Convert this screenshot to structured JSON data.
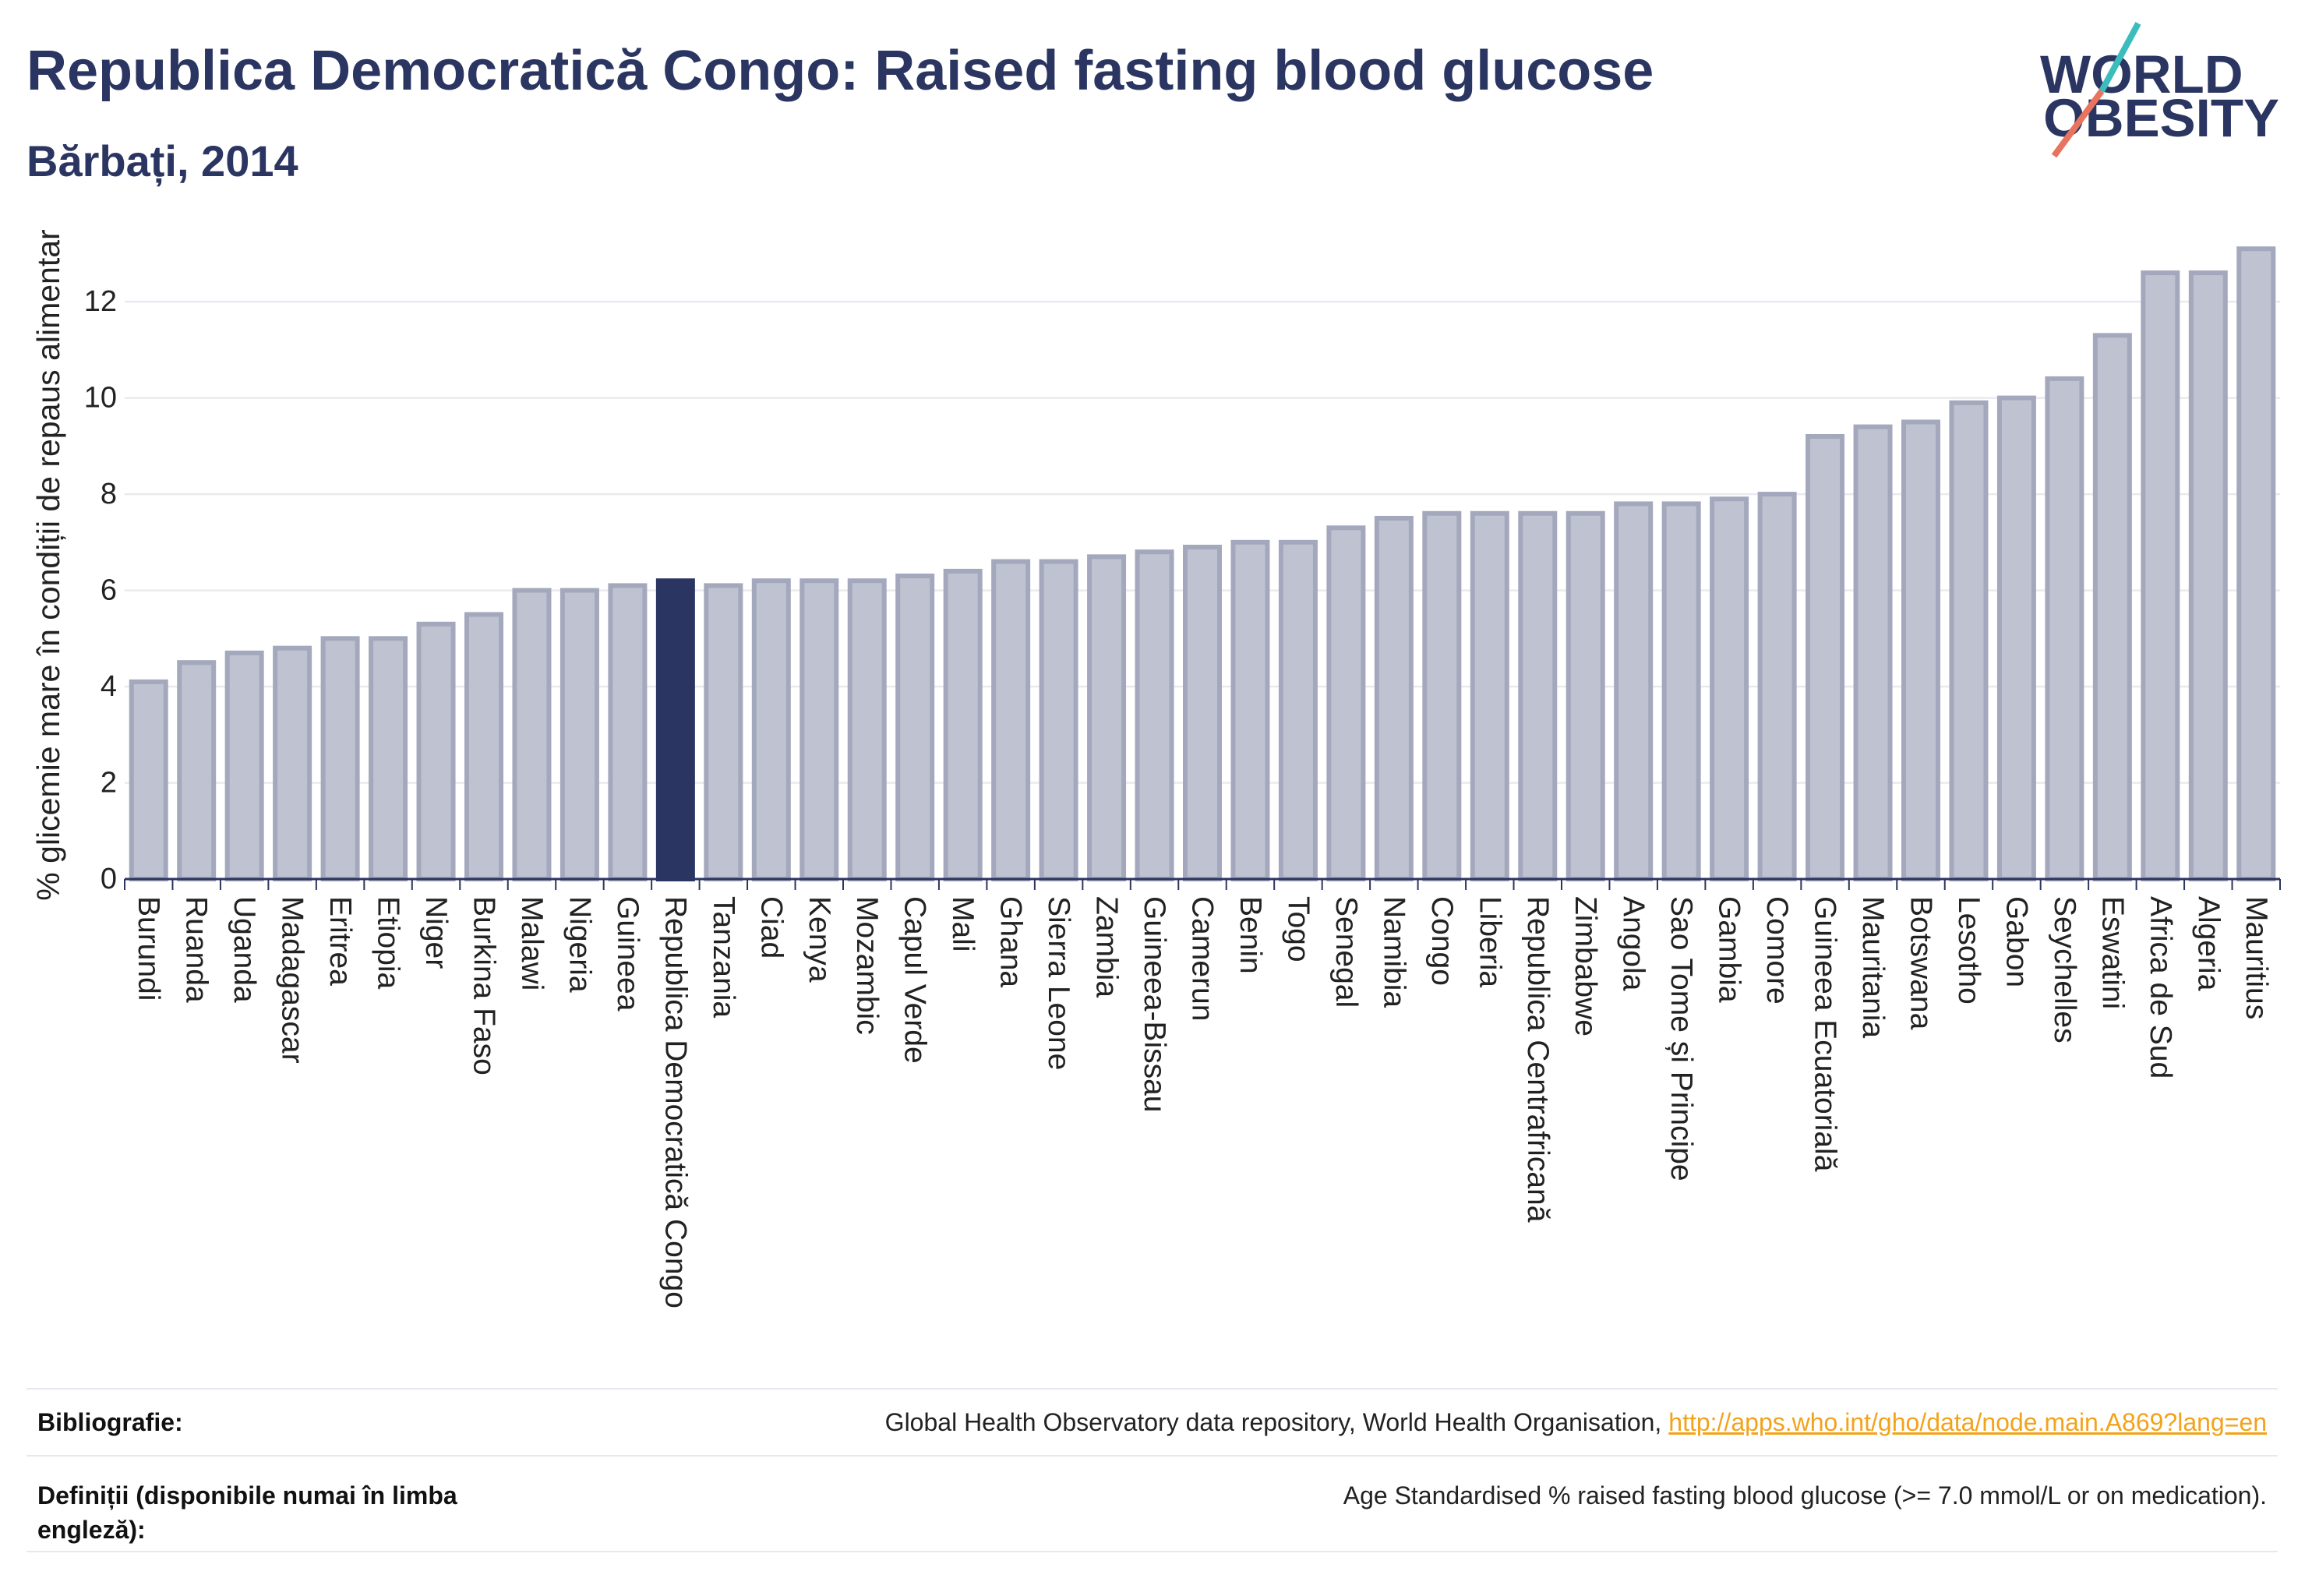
{
  "header": {
    "logo": {
      "line1": "WORLD",
      "line2": "OBESITY",
      "colors": {
        "text": "#2b3561",
        "slash_top": "#3bbcbd",
        "slash_bottom": "#e8735f"
      }
    }
  },
  "theme": {
    "title": "#2b3561",
    "link": "#f2a31b"
  },
  "chart_data": {
    "type": "bar",
    "title": "Republica Democratică Congo: Raised fasting blood glucose",
    "subtitle": "Bărbați, 2014",
    "xlabel": "",
    "ylabel": "% glicemie mare în condiții de repaus alimentar",
    "ylim": [
      0,
      13.8
    ],
    "yticks": [
      0,
      2,
      4,
      6,
      8,
      10,
      12
    ],
    "grid": true,
    "highlight_index": 11,
    "colors": {
      "bar": "#bfc2d0",
      "bar_border": "#a3a8bc",
      "highlight": "#2b3561",
      "grid": "#e9eaef",
      "axis": "#2b3561",
      "text": "#222222"
    },
    "categories": [
      "Burundi",
      "Ruanda",
      "Uganda",
      "Madagascar",
      "Eritrea",
      "Etiopia",
      "Niger",
      "Burkina Faso",
      "Malawi",
      "Nigeria",
      "Guineea",
      "Republica Democratică Congo",
      "Tanzania",
      "Ciad",
      "Kenya",
      "Mozambic",
      "Capul Verde",
      "Mali",
      "Ghana",
      "Sierra Leone",
      "Zambia",
      "Guineea-Bissau",
      "Camerun",
      "Benin",
      "Togo",
      "Senegal",
      "Namibia",
      "Congo",
      "Liberia",
      "Republica Centrafricană",
      "Zimbabwe",
      "Angola",
      "Sao Tome și Principe",
      "Gambia",
      "Comore",
      "Guineea Ecuatorială",
      "Mauritania",
      "Botswana",
      "Lesotho",
      "Gabon",
      "Seychelles",
      "Eswatini",
      "Africa de Sud",
      "Algeria",
      "Mauritius"
    ],
    "values": [
      4.1,
      4.5,
      4.7,
      4.8,
      5.0,
      5.0,
      5.3,
      5.5,
      6.0,
      6.0,
      6.1,
      6.2,
      6.1,
      6.2,
      6.2,
      6.2,
      6.3,
      6.4,
      6.6,
      6.6,
      6.7,
      6.8,
      6.9,
      7.0,
      7.0,
      7.3,
      7.5,
      7.6,
      7.6,
      7.6,
      7.6,
      7.8,
      7.8,
      7.9,
      8.0,
      9.2,
      9.4,
      9.5,
      9.9,
      10.0,
      10.4,
      11.3,
      12.6,
      12.6,
      13.1
    ]
  },
  "footer": {
    "bibliography_label": "Bibliografie:",
    "bibliography_text": "Global Health Observatory data repository, World Health Organisation,",
    "bibliography_link": "http://apps.who.int/gho/data/node.main.A869?lang=en",
    "definitions_label": "Definiții (disponibile numai în limba engleză):",
    "definitions_text": "Age Standardised % raised fasting blood glucose (>= 7.0 mmol/L or on medication)."
  }
}
